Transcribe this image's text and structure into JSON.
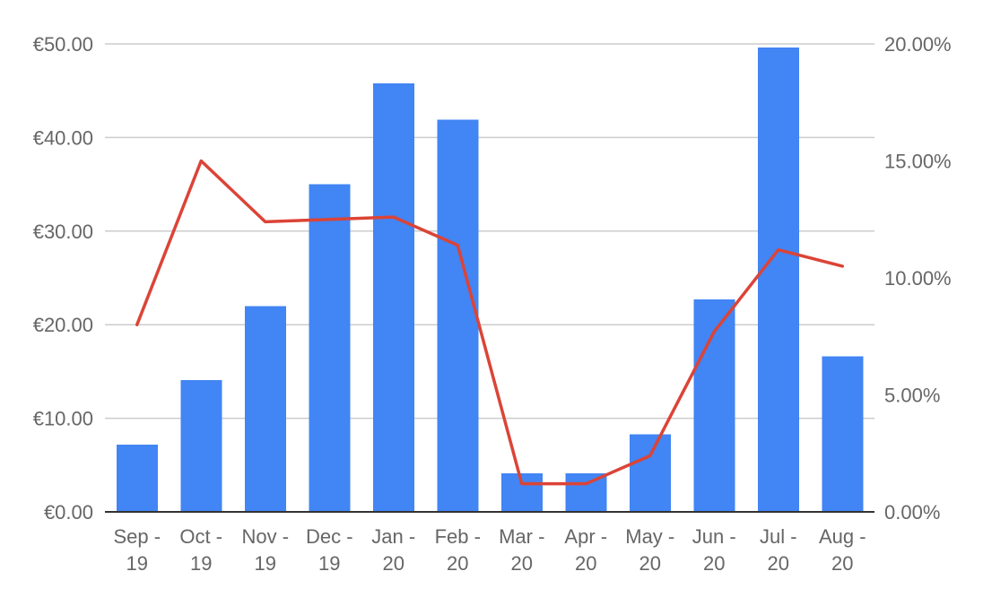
{
  "chart_data": {
    "type": "bar",
    "categories": [
      [
        "Sep -",
        "19"
      ],
      [
        "Oct -",
        "19"
      ],
      [
        "Nov -",
        "19"
      ],
      [
        "Dec -",
        "19"
      ],
      [
        "Jan -",
        "20"
      ],
      [
        "Feb -",
        "20"
      ],
      [
        "Mar -",
        "20"
      ],
      [
        "Apr -",
        "20"
      ],
      [
        "May -",
        "20"
      ],
      [
        "Jun -",
        "20"
      ],
      [
        "Jul -",
        "20"
      ],
      [
        "Aug -",
        "20"
      ]
    ],
    "series": [
      {
        "type": "bar",
        "axis": "left",
        "color": "#4285f4",
        "values": [
          7.2,
          14.1,
          22.0,
          35.0,
          45.8,
          41.9,
          4.1,
          4.1,
          8.3,
          22.7,
          49.6,
          16.6
        ]
      },
      {
        "type": "line",
        "axis": "right",
        "color": "#db4437",
        "values": [
          8.0,
          15.0,
          12.4,
          12.5,
          12.6,
          11.4,
          1.2,
          1.2,
          2.4,
          7.7,
          11.2,
          10.5
        ]
      }
    ],
    "y_left": {
      "ylim": [
        0,
        50
      ],
      "ticks": [
        0,
        10,
        20,
        30,
        40,
        50
      ],
      "tick_labels": [
        "€0.00",
        "€10.00",
        "€20.00",
        "€30.00",
        "€40.00",
        "€50.00"
      ]
    },
    "y_right": {
      "ylim": [
        0,
        20
      ],
      "ticks": [
        0,
        5,
        10,
        15,
        20
      ],
      "tick_labels": [
        "0.00%",
        "5.00%",
        "10.00%",
        "15.00%",
        "20.00%"
      ]
    },
    "grid": true,
    "legend": "none"
  }
}
